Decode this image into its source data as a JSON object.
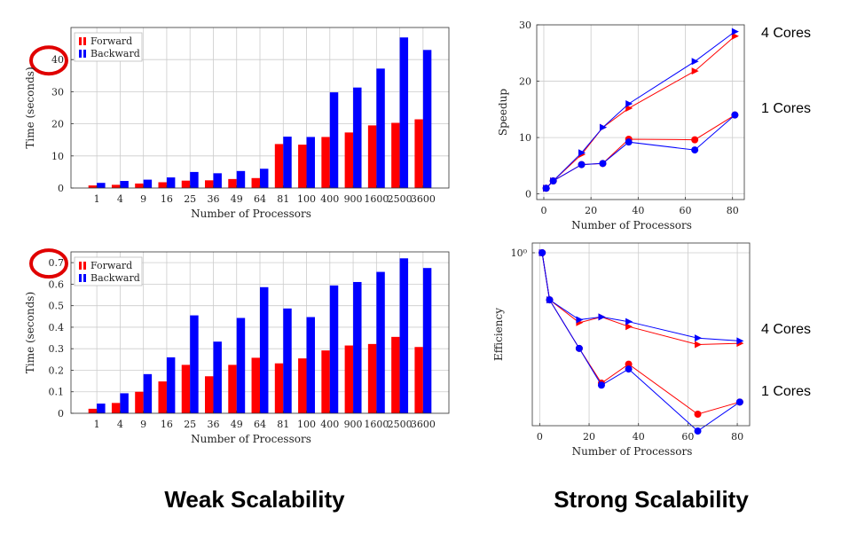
{
  "captions": {
    "weak": "Weak Scalability",
    "strong": "Strong Scalability"
  },
  "core_labels": {
    "four": "4 Cores",
    "one": "1 Cores"
  },
  "colors": {
    "forward": "#ff0000",
    "backward": "#0000ff",
    "highlight_circle": "#e00000",
    "grid": "#cccccc"
  },
  "chart_data": [
    {
      "id": "weak-time",
      "type": "bar",
      "xlabel": "Number of Processors",
      "ylabel": "Time (seconds)",
      "ylim": [
        0,
        50
      ],
      "yticks": [
        0,
        10,
        20,
        30,
        40
      ],
      "grid": true,
      "legend_placement": "top-left",
      "highlighted_tick": "40",
      "categories": [
        "1",
        "4",
        "9",
        "16",
        "25",
        "36",
        "49",
        "64",
        "81",
        "100",
        "400",
        "900",
        "1600",
        "2500",
        "3600"
      ],
      "series": [
        {
          "name": "Forward",
          "values": [
            0.8,
            1.0,
            1.4,
            1.8,
            2.3,
            2.4,
            2.8,
            3.1,
            13.7,
            13.5,
            15.9,
            17.3,
            19.5,
            20.3,
            21.4
          ]
        },
        {
          "name": "Backward",
          "values": [
            1.6,
            2.2,
            2.6,
            3.3,
            5.0,
            4.6,
            5.3,
            6.0,
            16.0,
            15.9,
            29.8,
            31.3,
            37.2,
            46.9,
            43.0
          ]
        }
      ]
    },
    {
      "id": "weak-time-small",
      "type": "bar",
      "xlabel": "Number of Processors",
      "ylabel": "Time (seconds)",
      "ylim": [
        0,
        0.75
      ],
      "yticks": [
        0,
        0.1,
        0.2,
        0.3,
        0.4,
        0.5,
        0.6,
        0.7
      ],
      "grid": true,
      "legend_placement": "top-left",
      "highlighted_tick": "0.7",
      "categories": [
        "1",
        "4",
        "9",
        "16",
        "25",
        "36",
        "49",
        "64",
        "81",
        "100",
        "400",
        "900",
        "1600",
        "2500",
        "3600"
      ],
      "series": [
        {
          "name": "Forward",
          "values": [
            0.021,
            0.048,
            0.1,
            0.148,
            0.225,
            0.172,
            0.225,
            0.258,
            0.232,
            0.255,
            0.292,
            0.315,
            0.322,
            0.355,
            0.308
          ]
        },
        {
          "name": "Backward",
          "values": [
            0.045,
            0.093,
            0.182,
            0.26,
            0.455,
            0.333,
            0.443,
            0.586,
            0.487,
            0.447,
            0.594,
            0.61,
            0.657,
            0.72,
            0.675
          ]
        }
      ]
    },
    {
      "id": "strong-speedup",
      "type": "line",
      "xlabel": "Number of Processors",
      "ylabel": "Speedup",
      "xlim": [
        -3,
        85
      ],
      "ylim": [
        -1,
        30
      ],
      "xticks": [
        0,
        20,
        40,
        60,
        80
      ],
      "yticks": [
        0,
        10,
        20,
        30
      ],
      "grid": true,
      "series": [
        {
          "group": "4 Cores",
          "color": "forward",
          "marker": "triangle",
          "x": [
            1,
            4,
            16,
            25,
            36,
            64,
            81
          ],
          "y": [
            1.0,
            2.3,
            7.0,
            11.8,
            15.2,
            21.8,
            28.0
          ]
        },
        {
          "group": "4 Cores",
          "color": "backward",
          "marker": "triangle",
          "x": [
            1,
            4,
            16,
            25,
            36,
            64,
            81
          ],
          "y": [
            1.0,
            2.3,
            7.3,
            11.8,
            16.0,
            23.5,
            28.8
          ]
        },
        {
          "group": "1 Cores",
          "color": "forward",
          "marker": "circle",
          "x": [
            1,
            4,
            16,
            25,
            36,
            64,
            81
          ],
          "y": [
            1.0,
            2.3,
            5.2,
            5.4,
            9.7,
            9.6,
            14.0
          ]
        },
        {
          "group": "1 Cores",
          "color": "backward",
          "marker": "circle",
          "x": [
            1,
            4,
            16,
            25,
            36,
            64,
            81
          ],
          "y": [
            1.0,
            2.3,
            5.2,
            5.4,
            9.2,
            7.8,
            14.0
          ]
        }
      ]
    },
    {
      "id": "strong-efficiency",
      "type": "line",
      "xlabel": "Number of Processors",
      "ylabel": "Efficiency",
      "y_scale": "log",
      "xlim": [
        -3,
        85
      ],
      "ylim": [
        0.15,
        1.0
      ],
      "xticks": [
        0,
        20,
        40,
        60,
        80
      ],
      "yticks": [
        1
      ],
      "ytick_labels": [
        "10⁰"
      ],
      "grid": true,
      "series": [
        {
          "group": "4 Cores",
          "color": "forward",
          "marker": "triangle",
          "x": [
            1,
            4,
            16,
            25,
            36,
            64,
            81
          ],
          "y": [
            1.0,
            0.575,
            0.44,
            0.47,
            0.42,
            0.34,
            0.345
          ]
        },
        {
          "group": "4 Cores",
          "color": "backward",
          "marker": "triangle",
          "x": [
            1,
            4,
            16,
            25,
            36,
            64,
            81
          ],
          "y": [
            1.0,
            0.575,
            0.455,
            0.47,
            0.445,
            0.367,
            0.355
          ]
        },
        {
          "group": "1 Cores",
          "color": "forward",
          "marker": "circle",
          "x": [
            1,
            4,
            16,
            25,
            36,
            64,
            81
          ],
          "y": [
            1.0,
            0.575,
            0.325,
            0.216,
            0.27,
            0.15,
            0.173
          ]
        },
        {
          "group": "1 Cores",
          "color": "backward",
          "marker": "circle",
          "x": [
            1,
            4,
            16,
            25,
            36,
            64,
            81
          ],
          "y": [
            1.0,
            0.575,
            0.325,
            0.211,
            0.255,
            0.123,
            0.173
          ]
        }
      ]
    }
  ]
}
